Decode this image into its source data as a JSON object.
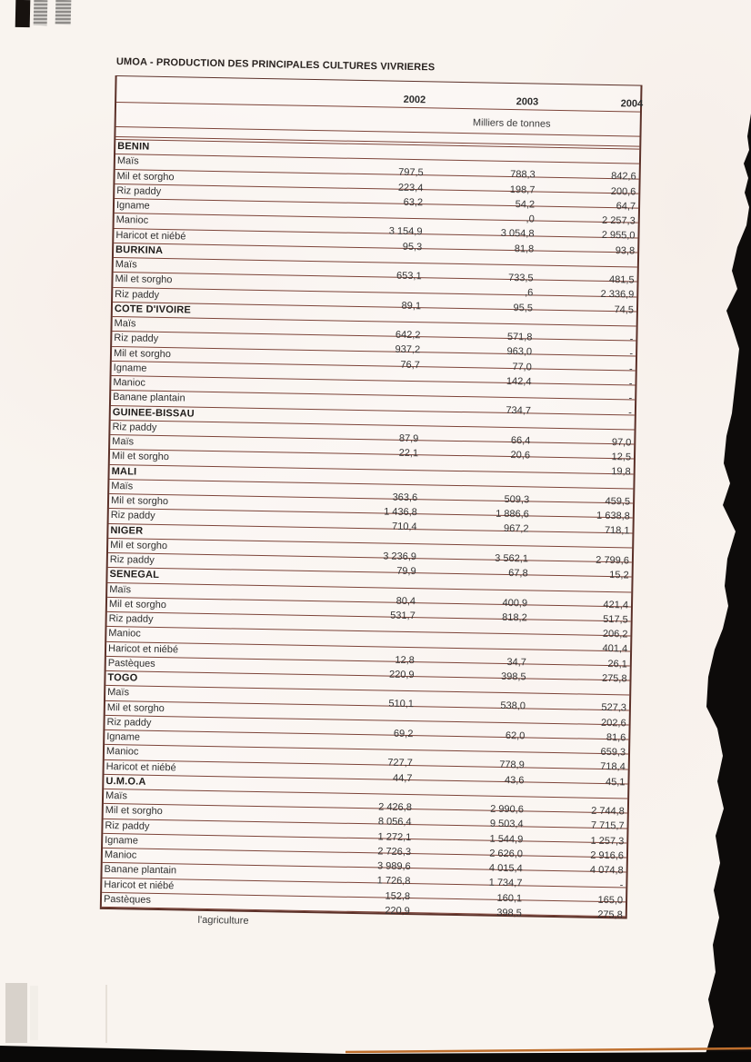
{
  "page": {
    "title": "UMOA - PRODUCTION DES PRINCIPALES CULTURES VIVRIERES",
    "footer": "l'agriculture"
  },
  "colors": {
    "table_line": "#7c4338",
    "ink": "#2f2f2f",
    "paper": "#f9f4ef",
    "torn_edge": "#0d0b0a",
    "bottom_accent": "#bf6f2d"
  },
  "table": {
    "years": [
      "2002",
      "2003",
      "2004"
    ],
    "unit": "Milliers de tonnes",
    "sections": [
      {
        "name": "BENIN",
        "rows": [
          {
            "label": "Maïs",
            "values": [
              "797,5",
              "788,3",
              "842,6"
            ]
          },
          {
            "label": "Mil et sorgho",
            "values": [
              "223,4",
              "198,7",
              "200,6"
            ]
          },
          {
            "label": "Riz paddy",
            "values": [
              "63,2",
              "54,2",
              "64,7"
            ]
          },
          {
            "label": "Igname",
            "values": [
              "",
              ",0",
              "2 257,3"
            ]
          },
          {
            "label": "Manioc",
            "values": [
              "3 154,9",
              "3 054,8",
              "2 955,0"
            ]
          },
          {
            "label": "Haricot et niébé",
            "values": [
              "95,3",
              "81,8",
              "93,8"
            ]
          }
        ]
      },
      {
        "name": "BURKINA",
        "rows": [
          {
            "label": "Maïs",
            "values": [
              "653,1",
              "733,5",
              "481,5"
            ]
          },
          {
            "label": "Mil et sorgho",
            "values": [
              "",
              ",6",
              "2 336,9"
            ]
          },
          {
            "label": "Riz paddy",
            "values": [
              "89,1",
              "95,5",
              "74,5"
            ]
          }
        ]
      },
      {
        "name": "COTE D'IVOIRE",
        "rows": [
          {
            "label": "Maïs",
            "values": [
              "642,2",
              "571,8",
              "-"
            ]
          },
          {
            "label": "Riz paddy",
            "values": [
              "937,2",
              "963,0",
              "-"
            ]
          },
          {
            "label": "Mil et sorgho",
            "values": [
              "76,7",
              "77,0",
              "-"
            ]
          },
          {
            "label": "Igname",
            "values": [
              "",
              "142,4",
              "-"
            ]
          },
          {
            "label": "Manioc",
            "values": [
              "",
              "",
              "-"
            ]
          },
          {
            "label": "Banane plantain",
            "values": [
              "",
              "734,7",
              "-"
            ]
          }
        ]
      },
      {
        "name": "GUINEE-BISSAU",
        "rows": [
          {
            "label": "Riz paddy",
            "values": [
              "87,9",
              "66,4",
              "97,0"
            ]
          },
          {
            "label": "Maïs",
            "values": [
              "22,1",
              "20,6",
              "12,5"
            ]
          },
          {
            "label": "Mil et sorgho",
            "values": [
              "",
              "",
              "19,8"
            ]
          }
        ]
      },
      {
        "name": "MALI",
        "rows": [
          {
            "label": "Maïs",
            "values": [
              "363,6",
              "509,3",
              "459,5"
            ]
          },
          {
            "label": "Mil et sorgho",
            "values": [
              "1 436,8",
              "1 886,6",
              "1 638,8"
            ]
          },
          {
            "label": "Riz paddy",
            "values": [
              "710,4",
              "967,2",
              "718,1"
            ]
          }
        ]
      },
      {
        "name": "NIGER",
        "rows": [
          {
            "label": "Mil et sorgho",
            "values": [
              "3 236,9",
              "3 562,1",
              "2 799,6"
            ]
          },
          {
            "label": "Riz paddy",
            "values": [
              "79,9",
              "67,8",
              "15,2"
            ]
          }
        ]
      },
      {
        "name": "SENEGAL",
        "rows": [
          {
            "label": "Maïs",
            "values": [
              "80,4",
              "400,9",
              "421,4"
            ]
          },
          {
            "label": "Mil et sorgho",
            "values": [
              "531,7",
              "818,2",
              "517,5"
            ]
          },
          {
            "label": "Riz paddy",
            "values": [
              "",
              "",
              "206,2"
            ]
          },
          {
            "label": "Manioc",
            "values": [
              "",
              "",
              "401,4"
            ]
          },
          {
            "label": "Haricot et niébé",
            "values": [
              "12,8",
              "34,7",
              "26,1"
            ]
          },
          {
            "label": "Pastèques",
            "values": [
              "220,9",
              "398,5",
              "275,8"
            ]
          }
        ]
      },
      {
        "name": "TOGO",
        "rows": [
          {
            "label": "Maïs",
            "values": [
              "510,1",
              "538,0",
              "527,3"
            ]
          },
          {
            "label": "Mil et sorgho",
            "values": [
              "",
              "",
              "202,6"
            ]
          },
          {
            "label": "Riz paddy",
            "values": [
              "69,2",
              "62,0",
              "81,6"
            ]
          },
          {
            "label": "Igname",
            "values": [
              "",
              "",
              "659,3"
            ]
          },
          {
            "label": "Manioc",
            "values": [
              "727,7",
              "778,9",
              "718,4"
            ]
          },
          {
            "label": "Haricot et niébé",
            "values": [
              "44,7",
              "43,6",
              "45,1"
            ]
          }
        ]
      },
      {
        "name": "U.M.O.A",
        "rows": [
          {
            "label": "Maïs",
            "values": [
              "2 426,8",
              "2 990,6",
              "2 744,8"
            ]
          },
          {
            "label": "Mil et sorgho",
            "values": [
              "8 056,4",
              "9 503,4",
              "7 715,7"
            ]
          },
          {
            "label": "Riz paddy",
            "values": [
              "1 272,1",
              "1 544,9",
              "1 257,3"
            ]
          },
          {
            "label": "Igname",
            "values": [
              "2 726,3",
              "2 626,0",
              "2 916,6"
            ]
          },
          {
            "label": "Manioc",
            "values": [
              "3 989,6",
              "4 015,4",
              "4 074,8"
            ]
          },
          {
            "label": "Banane plantain",
            "values": [
              "1 726,8",
              "1 734,7",
              "-"
            ]
          },
          {
            "label": "Haricot et niébé",
            "values": [
              "152,8",
              "160,1",
              "165,0"
            ]
          },
          {
            "label": "Pastèques",
            "values": [
              "220,9",
              "398,5",
              "275,8"
            ]
          }
        ]
      }
    ]
  }
}
